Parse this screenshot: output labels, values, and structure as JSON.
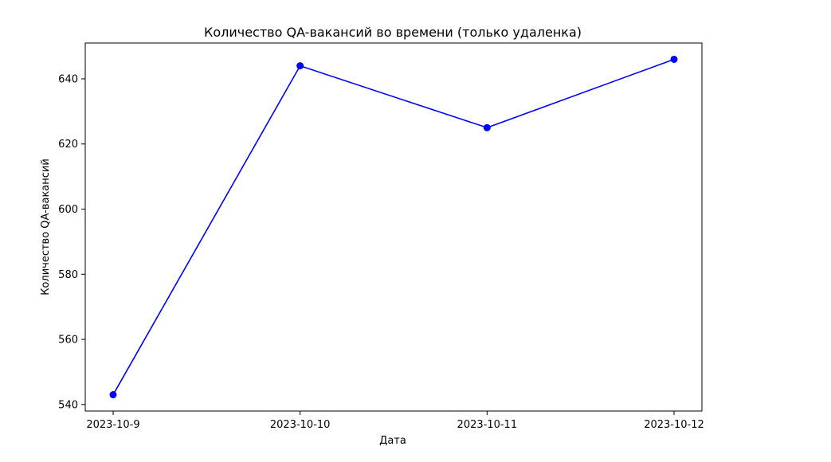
{
  "chart_data": {
    "type": "line",
    "title": "Количество QA-вакансий во времени (только удаленка)",
    "xlabel": "Дата",
    "ylabel": "Количество QA-вакансий",
    "categories": [
      "2023-10-9",
      "2023-10-10",
      "2023-10-11",
      "2023-10-12"
    ],
    "values": [
      543,
      644,
      625,
      646
    ],
    "y_ticks": [
      540,
      560,
      580,
      600,
      620,
      640
    ],
    "ylim": [
      538,
      651
    ],
    "grid": false,
    "legend": "none",
    "color": "#0000ff"
  }
}
